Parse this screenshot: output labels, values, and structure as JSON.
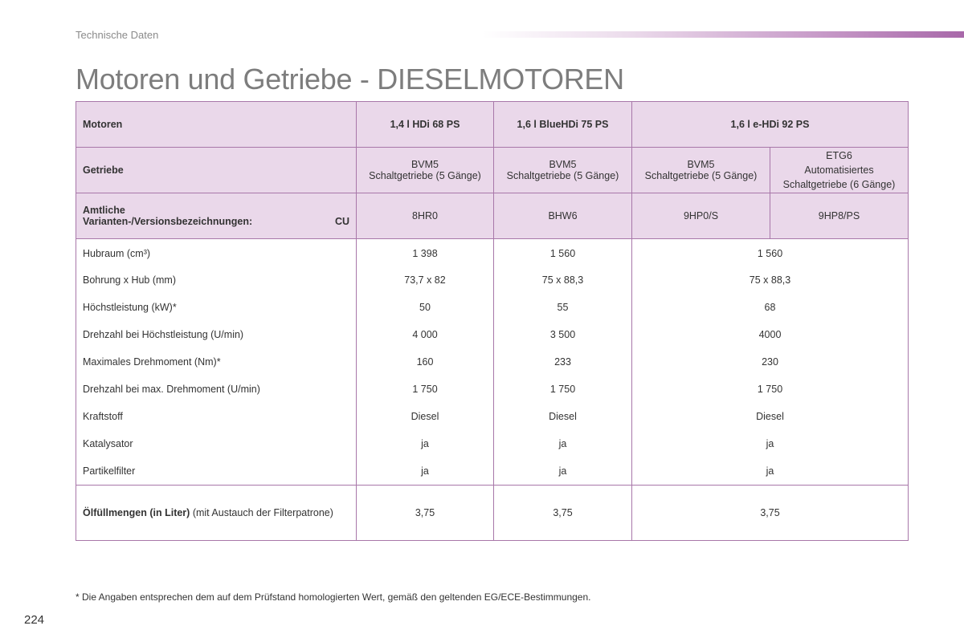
{
  "header": {
    "section_label": "Technische Daten",
    "title": "Motoren und Getriebe - DIESELMOTOREN"
  },
  "table": {
    "motor_row": {
      "label": "Motoren",
      "values": [
        "1,4 l HDi 68 PS",
        "1,6 l BlueHDi 75 PS",
        "1,6 l e-HDi 92 PS"
      ]
    },
    "gearbox_row": {
      "label": "Getriebe",
      "values": [
        {
          "line1": "BVM5",
          "line2": "Schaltgetriebe (5 Gänge)"
        },
        {
          "line1": "BVM5",
          "line2": "Schaltgetriebe (5 Gänge)"
        },
        {
          "line1": "BVM5",
          "line2": "Schaltgetriebe (5 Gänge)"
        },
        {
          "line1": "ETG6",
          "line2": "Automatisiertes",
          "line3": "Schaltgetriebe (6 Gänge)"
        }
      ]
    },
    "variant_row": {
      "label_line1": "Amtliche",
      "label_line2": "Varianten-/Versionsbezeichnungen:",
      "label_suffix": "CU",
      "values": [
        "8HR0",
        "BHW6",
        "9HP0/S",
        "9HP8/PS"
      ]
    },
    "data_rows": [
      {
        "label": "Hubraum (cm³)",
        "values": [
          "1 398",
          "1 560",
          "1 560"
        ]
      },
      {
        "label": "Bohrung x Hub (mm)",
        "values": [
          "73,7 x 82",
          "75 x 88,3",
          "75 x 88,3"
        ]
      },
      {
        "label": "Höchstleistung (kW)*",
        "values": [
          "50",
          "55",
          "68"
        ]
      },
      {
        "label": "Drehzahl bei Höchstleistung (U/min)",
        "values": [
          "4 000",
          "3 500",
          "4000"
        ]
      },
      {
        "label": "Maximales Drehmoment (Nm)*",
        "values": [
          "160",
          "233",
          "230"
        ]
      },
      {
        "label": "Drehzahl bei max. Drehmoment (U/min)",
        "values": [
          "1 750",
          "1 750",
          "1 750"
        ]
      },
      {
        "label": "Kraftstoff",
        "values": [
          "Diesel",
          "Diesel",
          "Diesel"
        ]
      },
      {
        "label": "Katalysator",
        "values": [
          "ja",
          "ja",
          "ja"
        ]
      },
      {
        "label": "Partikelfilter",
        "values": [
          "ja",
          "ja",
          "ja"
        ]
      }
    ],
    "oil_row": {
      "label_bold": "Ölfüllmengen (in Liter)",
      "label_rest": " (mit Austauch der Filterpatrone)",
      "values": [
        "3,75",
        "3,75",
        "3,75"
      ]
    }
  },
  "footnote": "* Die Angaben entsprechen dem auf dem Prüfstand homologierten Wert, gemäß den geltenden EG/ECE-Bestimmungen.",
  "page_number": "224",
  "colors": {
    "accent": "#a868a9",
    "header_fill": "#ead8ea",
    "border": "#a877a9",
    "title_gray": "#7d7d7d"
  }
}
